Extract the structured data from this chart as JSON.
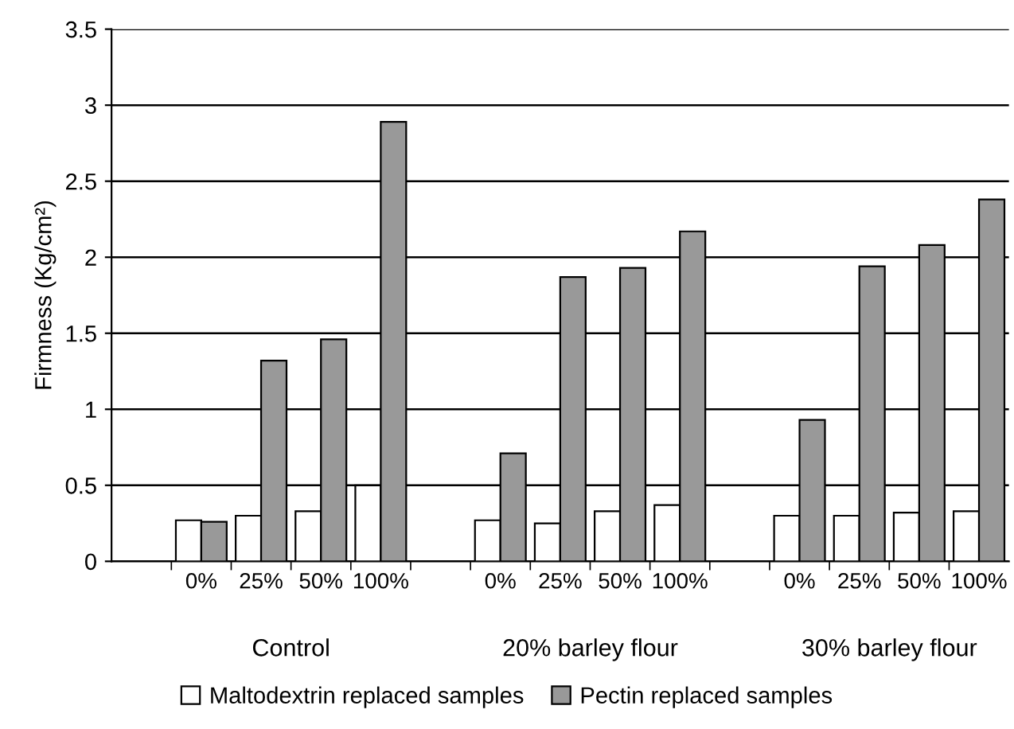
{
  "chart_data": {
    "type": "bar",
    "ylabel": "Firmness (Kg/cm²)",
    "categories": [
      null,
      "0%",
      "25%",
      "50%",
      "100%",
      null,
      "0%",
      "25%",
      "50%",
      "100%",
      null,
      "0%",
      "25%",
      "50%",
      "100%"
    ],
    "series": [
      {
        "name": "Maltodextrin replaced samples",
        "color": "#ffffff",
        "values": [
          null,
          0.27,
          0.3,
          0.33,
          0.5,
          null,
          0.27,
          0.25,
          0.33,
          0.37,
          null,
          0.3,
          0.3,
          0.32,
          0.33
        ]
      },
      {
        "name": "Pectin replaced samples",
        "color": "#999999",
        "values": [
          null,
          0.26,
          1.32,
          1.46,
          2.89,
          null,
          0.71,
          1.87,
          1.93,
          2.17,
          null,
          0.93,
          1.94,
          2.08,
          2.38
        ]
      }
    ],
    "annotations": [
      "Control",
      "20% barley flour",
      "30% barley flour"
    ],
    "ylim": [
      0,
      3.5
    ],
    "yticks": [
      0,
      0.5,
      1,
      1.5,
      2,
      2.5,
      3,
      3.5
    ],
    "grid": "y",
    "legend": "bottom"
  }
}
